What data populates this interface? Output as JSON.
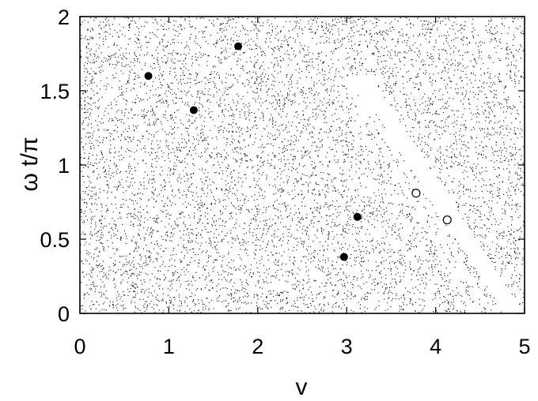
{
  "chart_data": {
    "type": "scatter",
    "title": "",
    "xlabel": "v",
    "ylabel": "ω t/π",
    "xlim": [
      0,
      5
    ],
    "ylim": [
      0,
      2
    ],
    "x_ticks": [
      "0",
      "1",
      "2",
      "3",
      "4",
      "5"
    ],
    "y_ticks": [
      "0",
      "0.5",
      "1",
      "1.5",
      "2"
    ],
    "grid": false,
    "background": {
      "kind": "dense-point-cloud",
      "color": "#000000",
      "empty_regions": "thin diagonal bands near v≈3.5–4.5 and v≈4.6–5.0"
    },
    "series": [
      {
        "marker": "filled-circle",
        "color": "#000000",
        "points": [
          {
            "x": 0.77,
            "y": 1.6
          },
          {
            "x": 1.28,
            "y": 1.37
          },
          {
            "x": 1.78,
            "y": 1.8
          },
          {
            "x": 3.12,
            "y": 0.65
          },
          {
            "x": 2.97,
            "y": 0.38
          }
        ]
      },
      {
        "marker": "open-circle",
        "color": "#000000",
        "points": [
          {
            "x": 3.78,
            "y": 0.81
          },
          {
            "x": 4.13,
            "y": 0.63
          }
        ]
      }
    ]
  }
}
